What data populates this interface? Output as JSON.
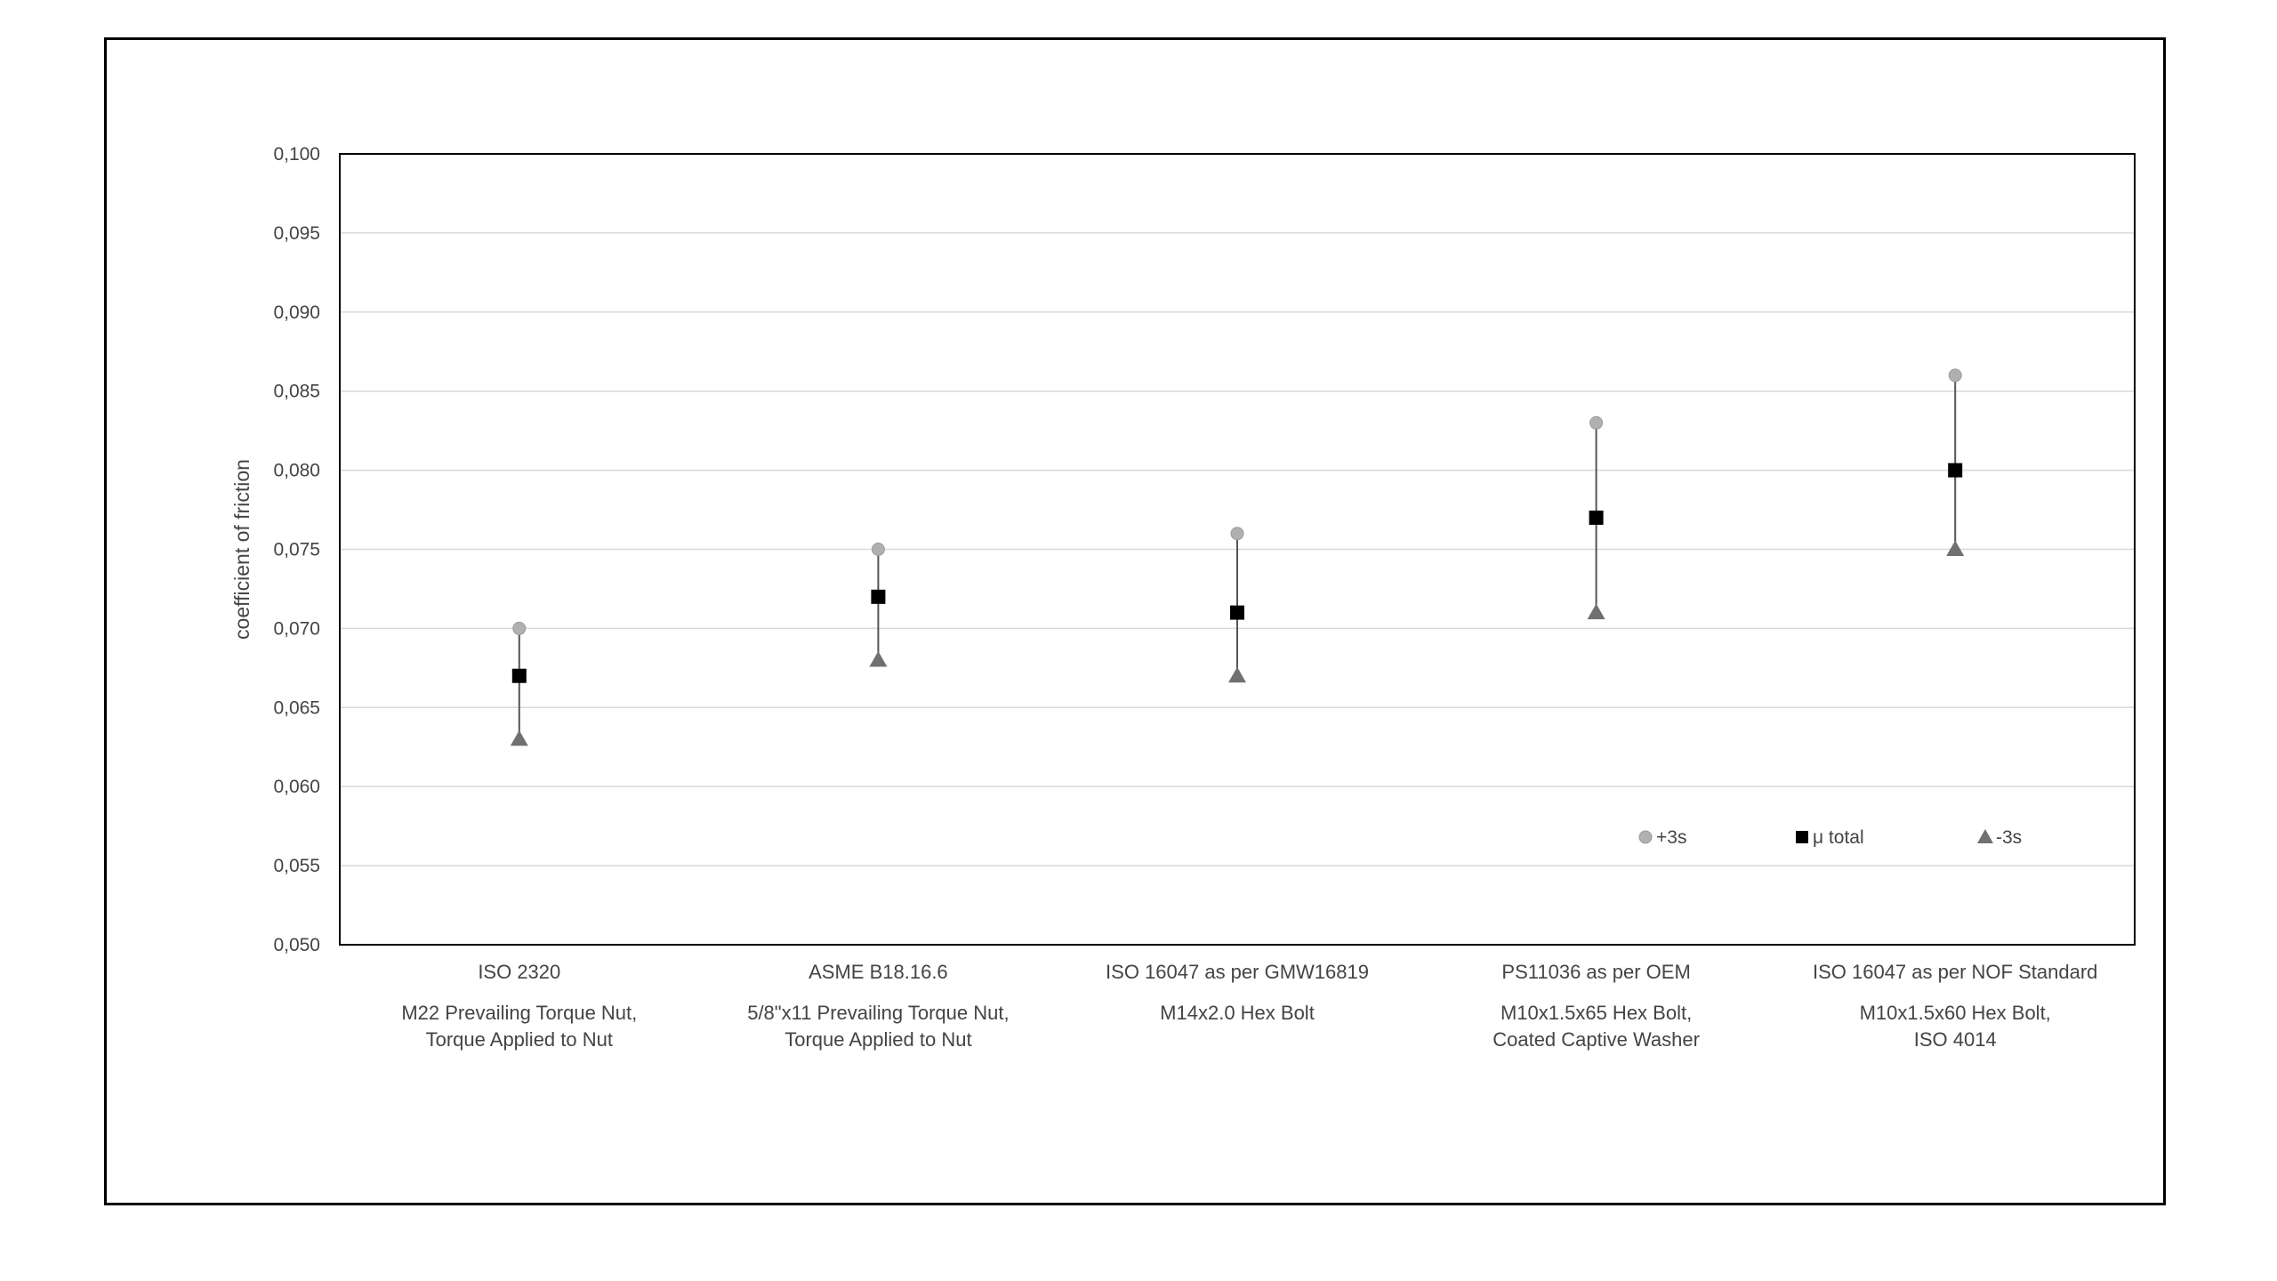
{
  "chart_data": {
    "type": "scatter",
    "ylabel": "coefficient of friction",
    "ylim": [
      0.05,
      0.1
    ],
    "ytick_step": 0.005,
    "ytick_labels": [
      "0,050",
      "0,055",
      "0,060",
      "0,065",
      "0,070",
      "0,075",
      "0,080",
      "0,085",
      "0,090",
      "0,095",
      "0,100"
    ],
    "grid": true,
    "legend_position": "bottom-right",
    "categories": [
      {
        "line1": "ISO 2320",
        "line2": "M22 Prevailing Torque Nut,",
        "line3": "Torque Applied to Nut"
      },
      {
        "line1": "ASME B18.16.6",
        "line2": "5/8\"x11 Prevailing Torque Nut,",
        "line3": "Torque Applied to Nut"
      },
      {
        "line1": "ISO 16047 as per GMW16819",
        "line2": "M14x2.0 Hex Bolt",
        "line3": ""
      },
      {
        "line1": "PS11036 as per OEM",
        "line2": "M10x1.5x65 Hex Bolt,",
        "line3": "Coated Captive Washer"
      },
      {
        "line1": "ISO 16047 as per NOF Standard",
        "line2": "M10x1.5x60 Hex Bolt,",
        "line3": "ISO 4014"
      }
    ],
    "series": [
      {
        "name": "+3s",
        "marker": "circle",
        "color": "#b0b0b0",
        "values": [
          0.07,
          0.075,
          0.076,
          0.083,
          0.086
        ]
      },
      {
        "name": "μ total",
        "marker": "square",
        "color": "#000000",
        "values": [
          0.067,
          0.072,
          0.071,
          0.077,
          0.08
        ]
      },
      {
        "name": "-3s",
        "marker": "triangle",
        "color": "#707070",
        "values": [
          0.063,
          0.068,
          0.067,
          0.071,
          0.075
        ]
      }
    ]
  }
}
